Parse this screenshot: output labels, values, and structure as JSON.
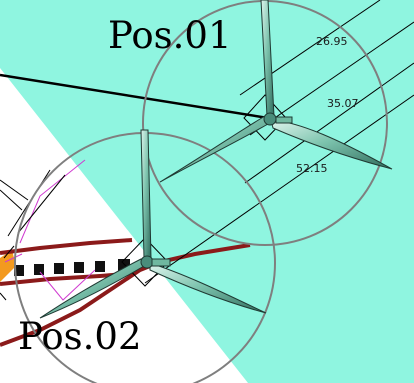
{
  "positions": [
    {
      "label": "Pos.01"
    },
    {
      "label": "Pos.02"
    }
  ],
  "dimensions": [
    {
      "label": "26.95"
    },
    {
      "label": "35.07"
    },
    {
      "label": "52.15"
    }
  ],
  "colors": {
    "zone_fill": "#8ff5e0",
    "circle_stroke": "#7f7f7f",
    "road_stroke": "#8b1a1a",
    "blade_fill": "#6fb8a0",
    "blade_stroke": "#1f3a33",
    "magenta_line": "#d03ad0",
    "hazard_orange": "#f39a1f"
  }
}
